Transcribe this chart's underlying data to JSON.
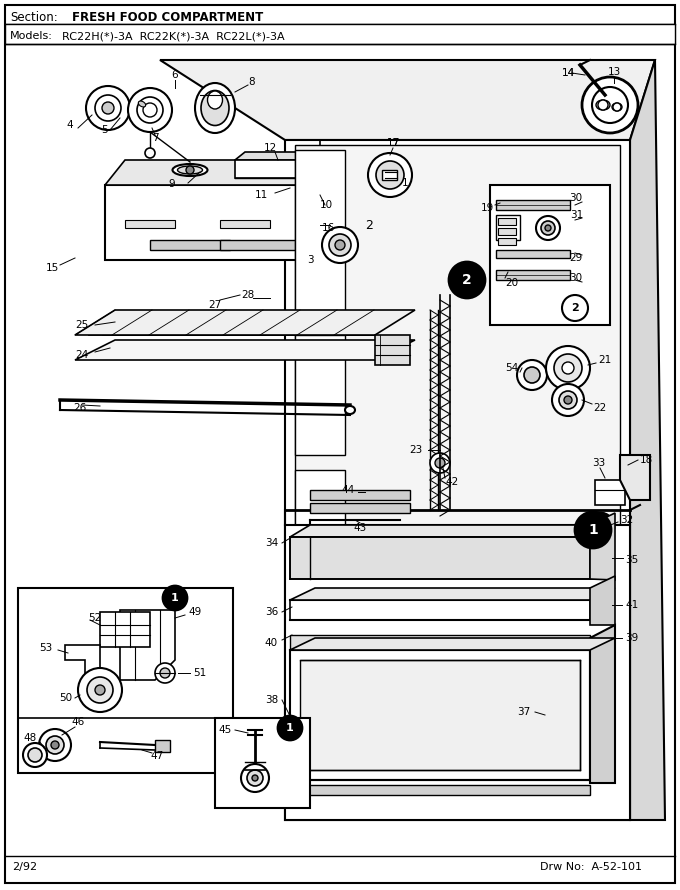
{
  "title_section": "Section:",
  "title_text": "FRESH FOOD COMPARTMENT",
  "models_label": "Models:",
  "models_text": "RC22H(*)-3A  RC22K(*)-3A  RC22L(*)-3A",
  "footer_left": "2/92",
  "footer_right": "Drw No:  A-52-101",
  "bg_color": "#ffffff",
  "border_color": "#000000",
  "text_color": "#000000",
  "fig_width": 6.8,
  "fig_height": 8.9,
  "dpi": 100
}
